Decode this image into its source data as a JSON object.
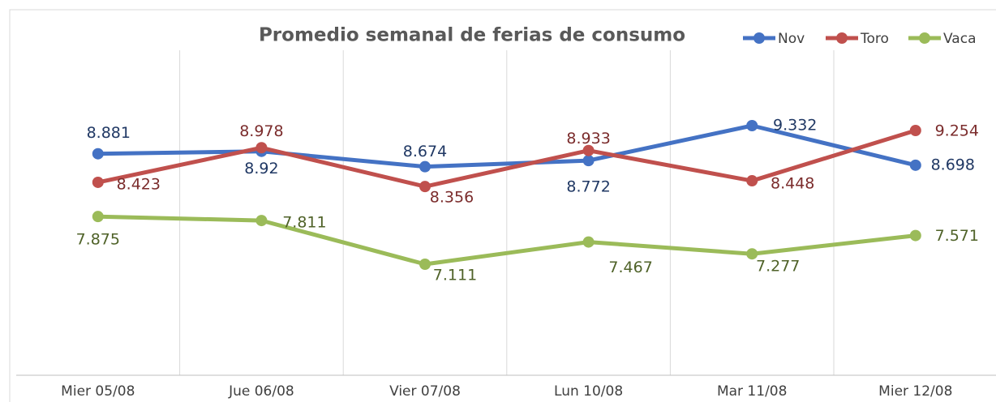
{
  "chart_data": {
    "type": "line",
    "title": "Promedio semanal de ferias de consumo",
    "categories": [
      "Mier 05/08",
      "Jue  06/08",
      "Vier 07/08",
      "Lun 10/08",
      "Mar 11/08",
      "Mier 12/08"
    ],
    "series": [
      {
        "name": "Nov",
        "color": "#4472c4",
        "values": [
          8.881,
          8.92,
          8.674,
          8.772,
          9.332,
          8.698
        ]
      },
      {
        "name": "Toro",
        "color": "#c0504d",
        "values": [
          8.423,
          8.978,
          8.356,
          8.933,
          8.448,
          9.254
        ]
      },
      {
        "name": "Vaca",
        "color": "#9bbb59",
        "values": [
          7.875,
          7.811,
          7.111,
          7.467,
          7.277,
          7.571
        ]
      }
    ],
    "grid": true,
    "legend": "top-right"
  }
}
